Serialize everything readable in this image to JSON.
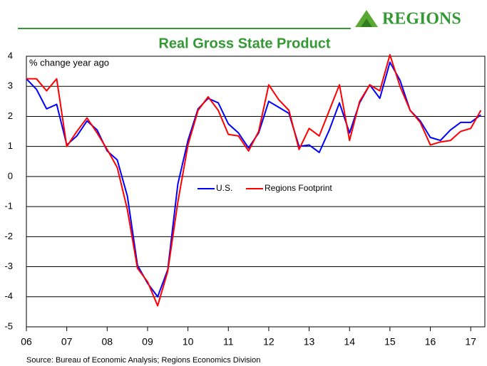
{
  "logo": "REGIONS",
  "chart_data": {
    "type": "line",
    "title": "Real Gross State Product",
    "y_label": "% change year ago",
    "source": "Source: Bureau of Economic Analysis; Regions Economics Division",
    "x": [
      2006,
      2006.25,
      2006.5,
      2006.75,
      2007,
      2007.25,
      2007.5,
      2007.75,
      2008,
      2008.25,
      2008.5,
      2008.75,
      2009,
      2009.25,
      2009.5,
      2009.75,
      2010,
      2010.25,
      2010.5,
      2010.75,
      2011,
      2011.25,
      2011.5,
      2011.75,
      2012,
      2012.25,
      2012.5,
      2012.75,
      2013,
      2013.25,
      2013.5,
      2013.75,
      2014,
      2014.25,
      2014.5,
      2014.75,
      2015,
      2015.25,
      2015.5,
      2015.75,
      2016,
      2016.25,
      2016.5,
      2016.75,
      2017,
      2017.25
    ],
    "series": [
      {
        "name": "U.S.",
        "color": "#0000ff",
        "values": [
          3.25,
          2.9,
          2.25,
          2.4,
          1.05,
          1.35,
          1.85,
          1.55,
          0.85,
          0.55,
          -0.65,
          -2.95,
          -3.55,
          -4.0,
          -3.1,
          -0.25,
          1.2,
          2.25,
          2.6,
          2.45,
          1.75,
          1.45,
          0.95,
          1.45,
          2.5,
          2.3,
          2.1,
          1.0,
          1.05,
          0.8,
          1.55,
          2.45,
          1.45,
          2.45,
          3.05,
          2.6,
          3.8,
          3.2,
          2.2,
          1.85,
          1.3,
          1.2,
          1.55,
          1.8,
          1.8,
          2.05
        ]
      },
      {
        "name": "Regions Footprint",
        "color": "#ff0000",
        "values": [
          3.25,
          3.25,
          2.85,
          3.25,
          1.0,
          1.5,
          1.95,
          1.45,
          0.9,
          0.3,
          -1.1,
          -3.05,
          -3.5,
          -4.3,
          -3.15,
          -0.85,
          1.05,
          2.2,
          2.65,
          2.2,
          1.4,
          1.35,
          0.85,
          1.5,
          3.05,
          2.55,
          2.2,
          0.9,
          1.6,
          1.35,
          2.2,
          3.05,
          1.2,
          2.5,
          3.05,
          2.85,
          4.05,
          3.0,
          2.2,
          1.8,
          1.05,
          1.15,
          1.2,
          1.5,
          1.6,
          2.2
        ]
      }
    ],
    "xlim": [
      2006,
      2017.35
    ],
    "xticks": [
      {
        "value": 2006,
        "label": "06"
      },
      {
        "value": 2007,
        "label": "07"
      },
      {
        "value": 2008,
        "label": "08"
      },
      {
        "value": 2009,
        "label": "09"
      },
      {
        "value": 2010,
        "label": "10"
      },
      {
        "value": 2011,
        "label": "11"
      },
      {
        "value": 2012,
        "label": "12"
      },
      {
        "value": 2013,
        "label": "13"
      },
      {
        "value": 2014,
        "label": "14"
      },
      {
        "value": 2015,
        "label": "15"
      },
      {
        "value": 2016,
        "label": "16"
      },
      {
        "value": 2017,
        "label": "17"
      }
    ],
    "ylim": [
      -5,
      4
    ],
    "yticks": [
      -5,
      -4,
      -3,
      -2,
      -1,
      0,
      1,
      2,
      3,
      4
    ],
    "grid": true,
    "legend": "center"
  }
}
